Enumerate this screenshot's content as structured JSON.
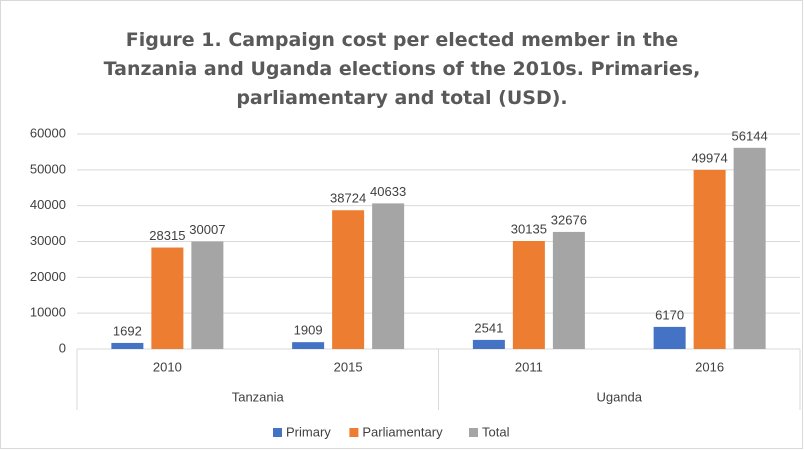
{
  "chart_data": {
    "type": "bar",
    "title": "Figure 1. Campaign cost per elected member in the Tanzania and Uganda elections of the 2010s. Primaries,  parliamentary and total (USD).",
    "categories": [
      "2010",
      "2015",
      "2011",
      "2016"
    ],
    "groups": [
      {
        "name": "Tanzania",
        "count": 2
      },
      {
        "name": "Uganda",
        "count": 2
      }
    ],
    "series": [
      {
        "name": "Primary",
        "color": "#4472c4",
        "values": [
          1692,
          1909,
          2541,
          6170
        ]
      },
      {
        "name": "Parliamentary",
        "color": "#ed7d31",
        "values": [
          28315,
          38724,
          30135,
          49974
        ]
      },
      {
        "name": "Total",
        "color": "#a5a5a5",
        "values": [
          30007,
          40633,
          32676,
          56144
        ]
      }
    ],
    "ylim": [
      0,
      60000
    ],
    "yticks": [
      0,
      10000,
      20000,
      30000,
      40000,
      50000,
      60000
    ],
    "grid": true,
    "legend": "bottom"
  }
}
